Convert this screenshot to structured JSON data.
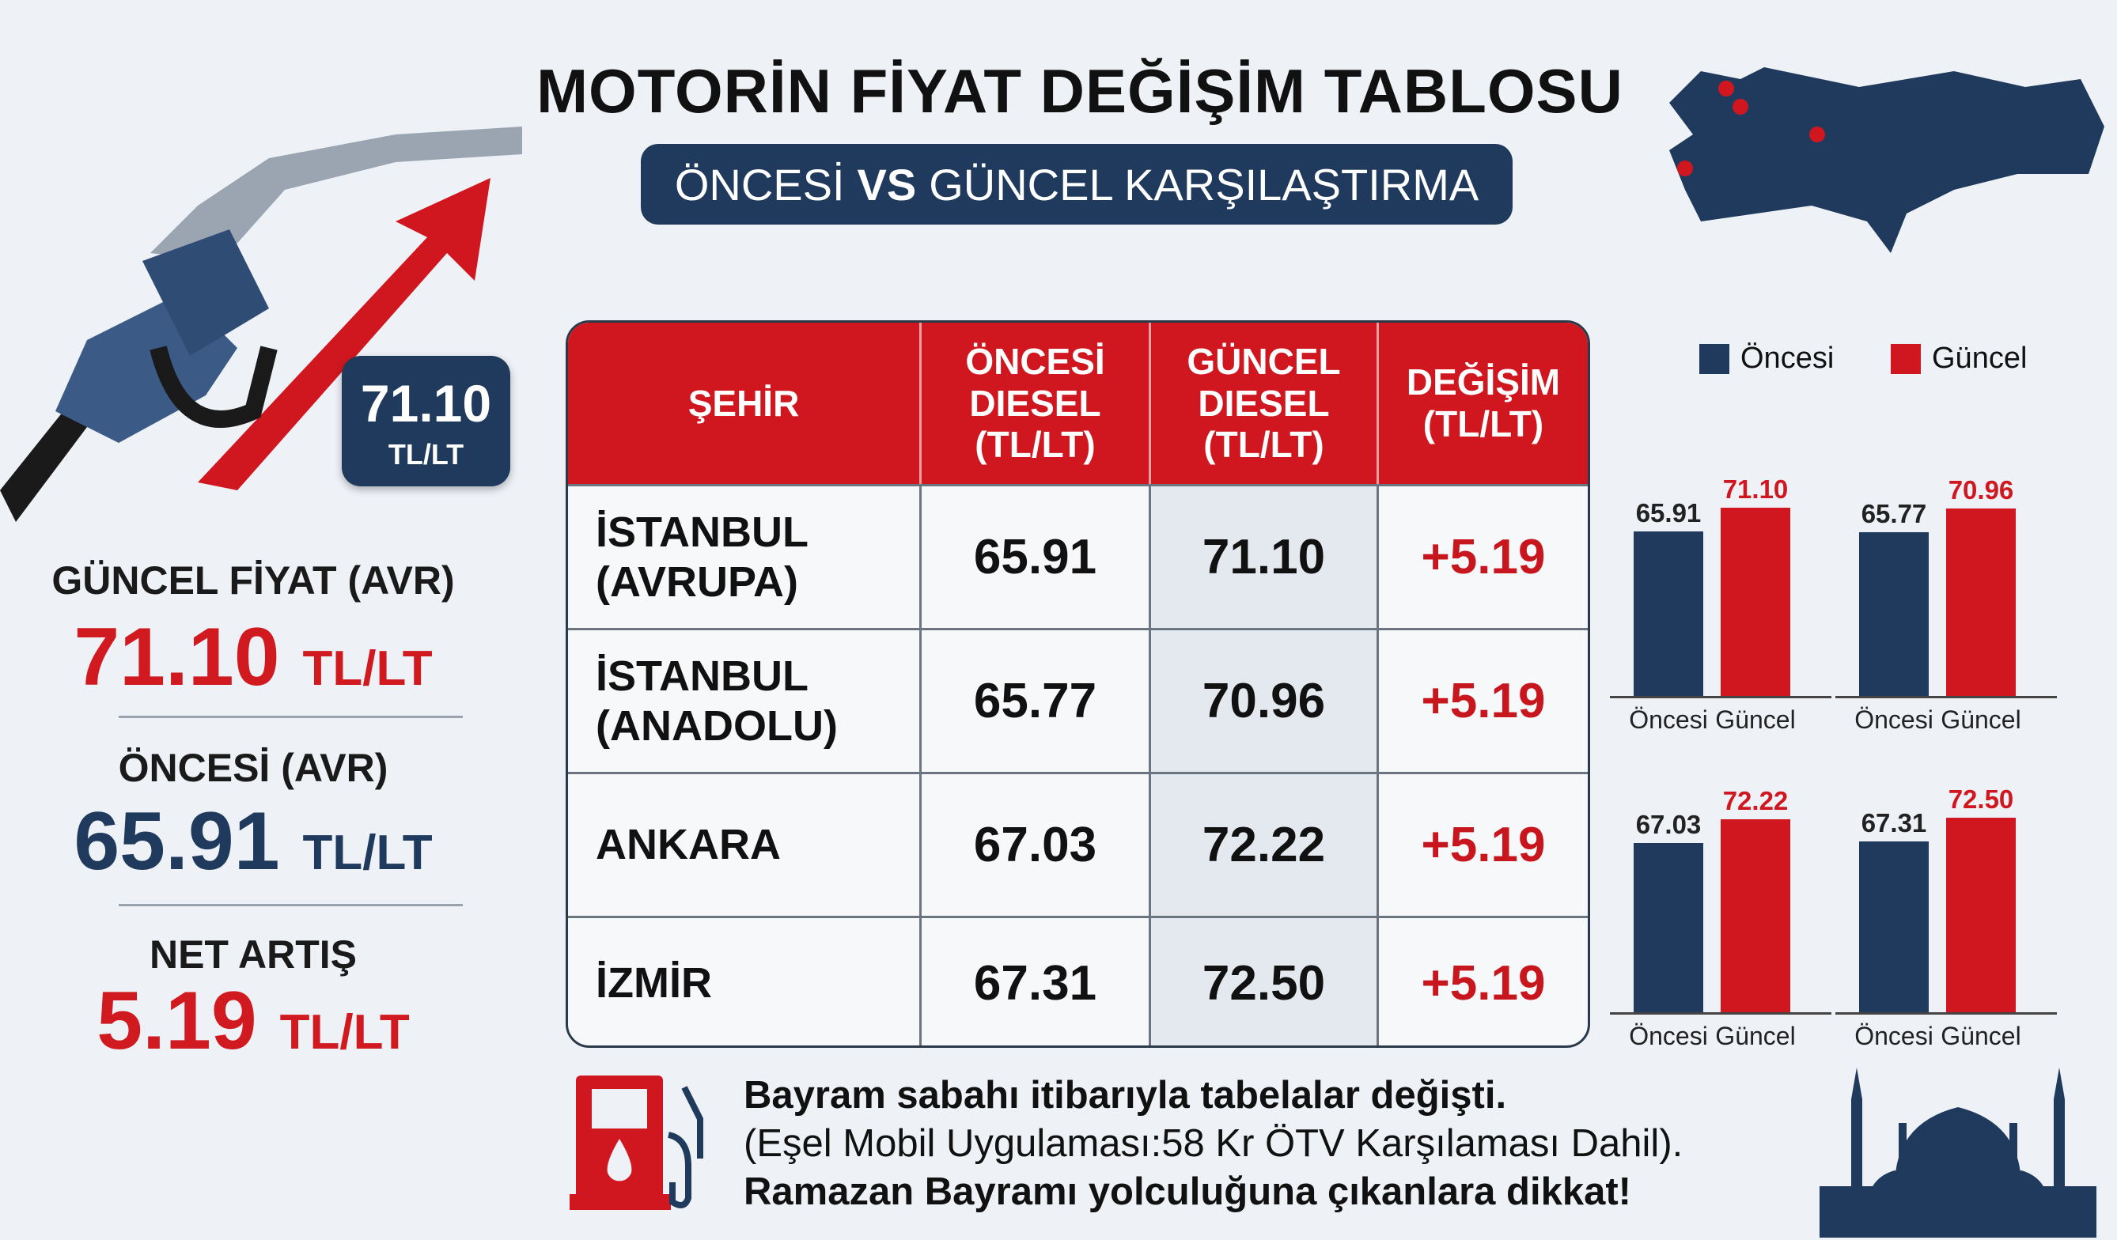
{
  "header": {
    "title": "MOTORİN FİYAT DEĞİŞİM TABLOSU",
    "subtitle_left": "ÖNCESİ",
    "subtitle_vs": "VS",
    "subtitle_right": "GÜNCEL KARŞILAŞTIRMA"
  },
  "price_badge": {
    "value": "71.10",
    "unit": "TL/LT"
  },
  "summary": {
    "current_label": "GÜNCEL FİYAT (AVR)",
    "current_value": "71.10",
    "current_unit": "TL/LT",
    "previous_label": "ÖNCESİ (AVR)",
    "previous_value": "65.91",
    "previous_unit": "TL/LT",
    "increase_label": "NET ARTIŞ",
    "increase_value": "5.19",
    "increase_unit": "TL/LT"
  },
  "table": {
    "headers": [
      "ŞEHİR",
      "ÖNCESİ DIESEL (TL/LT)",
      "GÜNCEL DIESEL (TL/LT)",
      "DEĞİŞİM (TL/LT)"
    ],
    "rows": [
      [
        "İSTANBUL (AVRUPA)",
        "65.91",
        "71.10",
        "+5.19"
      ],
      [
        "İSTANBUL (ANADOLU)",
        "65.77",
        "70.96",
        "+5.19"
      ],
      [
        "ANKARA",
        "67.03",
        "72.22",
        "+5.19"
      ],
      [
        "İZMİR",
        "67.31",
        "72.50",
        "+5.19"
      ]
    ]
  },
  "colors": {
    "navy": "#1f3a5c",
    "red": "#d0171f"
  },
  "chart_data": {
    "type": "bar",
    "legend": [
      "Öncesi",
      "Güncel"
    ],
    "legend_position": "top",
    "categories": [
      "Öncesi",
      "Güncel"
    ],
    "ylim": [
      30,
      75
    ],
    "charts": [
      {
        "values": [
          65.91,
          71.1
        ],
        "labels": [
          "65.91",
          "71.10"
        ]
      },
      {
        "values": [
          65.77,
          70.96
        ],
        "labels": [
          "65.77",
          "70.96"
        ]
      },
      {
        "values": [
          67.03,
          72.22
        ],
        "labels": [
          "67.03",
          "72.22"
        ]
      },
      {
        "values": [
          67.31,
          72.5
        ],
        "labels": [
          "67.31",
          "72.50"
        ]
      }
    ]
  },
  "footer": {
    "line1": "Bayram sabahı itibarıyla tabelalar değişti.",
    "line2": "(Eşel Mobil Uygulaması:58 Kr ÖTV Karşılaması Dahil).",
    "line3": "Ramazan Bayramı yolculuğuna çıkanlara dikkat!"
  }
}
